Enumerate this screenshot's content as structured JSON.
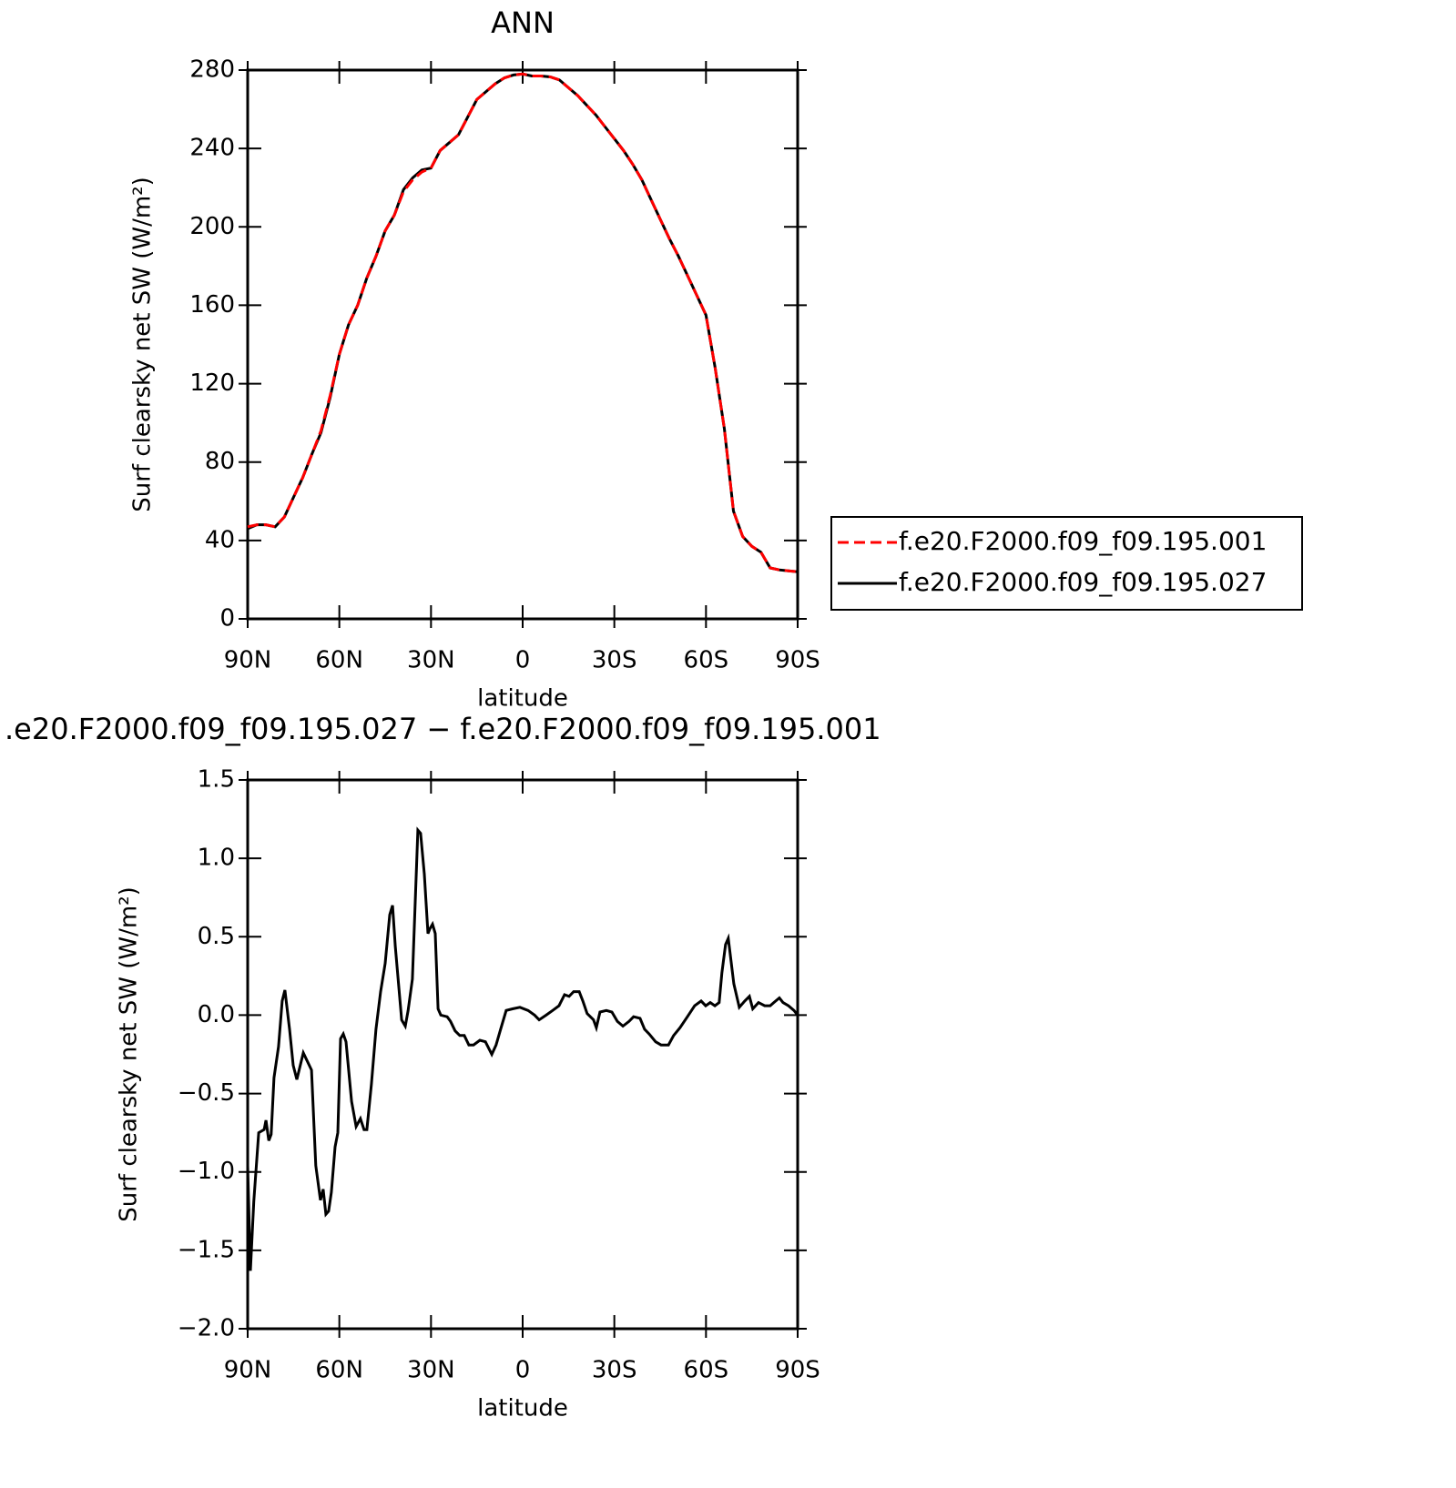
{
  "chart_data": [
    {
      "type": "line",
      "title": "ANN",
      "xlabel": "latitude",
      "ylabel": "Surf clearsky net SW (W/m²)",
      "x": [
        90,
        87,
        84,
        81,
        78,
        75,
        72,
        69,
        66,
        63,
        60,
        57,
        54,
        51,
        48,
        45,
        42,
        39,
        36,
        33,
        30,
        27,
        24,
        21,
        18,
        15,
        12,
        9,
        6,
        3,
        0,
        -3,
        -6,
        -9,
        -12,
        -15,
        -18,
        -21,
        -24,
        -27,
        -30,
        -33,
        -36,
        -39,
        -42,
        -45,
        -48,
        -51,
        -54,
        -57,
        -60,
        -63,
        -66,
        -69,
        -72,
        -75,
        -78,
        -81,
        -84,
        -87,
        -90
      ],
      "series": [
        {
          "name": "f.e20.F2000.f09_f09.195.001",
          "color": "#ff0000",
          "dash": true,
          "values": [
            47,
            48,
            48,
            47,
            52,
            62,
            72,
            84,
            96,
            114,
            135,
            150,
            160,
            174,
            185,
            198,
            206,
            218,
            224,
            228,
            230,
            239,
            243,
            247,
            256,
            265,
            269,
            273,
            276,
            277.5,
            278,
            277,
            277,
            276.5,
            275,
            271,
            267,
            262,
            257,
            251,
            245,
            239,
            232,
            224,
            214,
            204,
            194,
            185,
            175,
            165,
            155,
            128,
            97,
            55,
            42,
            37,
            34,
            26,
            25,
            24.5,
            24
          ]
        },
        {
          "name": "f.e20.F2000.f09_f09.195.027",
          "color": "#000000",
          "dash": false,
          "values": [
            46,
            48,
            48,
            47,
            52,
            62,
            72,
            84,
            95,
            113,
            135,
            150,
            160,
            174,
            185,
            198,
            206,
            219,
            225,
            229,
            230,
            239,
            243,
            247,
            256,
            265,
            269,
            273,
            276,
            277.5,
            278,
            277,
            277,
            276.5,
            275,
            271,
            267,
            262,
            257,
            251,
            245,
            239,
            232,
            224,
            214,
            204,
            194,
            185,
            175,
            165,
            155,
            128,
            97,
            55,
            42,
            37,
            34,
            26,
            25,
            24.5,
            24
          ]
        }
      ],
      "xlim": [
        90,
        -90
      ],
      "xticks": [
        {
          "value": 90,
          "label": "90N"
        },
        {
          "value": 60,
          "label": "60N"
        },
        {
          "value": 30,
          "label": "30N"
        },
        0,
        {
          "value": -30,
          "label": "30S"
        },
        {
          "value": -60,
          "label": "60S"
        },
        {
          "value": -90,
          "label": "90S"
        }
      ],
      "ylim": [
        0,
        280
      ],
      "yticks": [
        0,
        40,
        80,
        120,
        160,
        200,
        240,
        280
      ],
      "legend": "right"
    },
    {
      "type": "line",
      "title": ".e20.F2000.f09_f09.195.027 − f.e20.F2000.f09_f09.195.001",
      "xlabel": "latitude",
      "ylabel": "Surf clearsky net SW (W/m²)",
      "color": "#000000",
      "x": [
        90,
        89.1,
        88,
        86.4,
        84.6,
        84,
        83.1,
        82.3,
        81.4,
        79.9,
        78.7,
        77.8,
        76.3,
        75.1,
        73.9,
        71.8,
        69.1,
        67.7,
        66.2,
        65.3,
        64.4,
        63.5,
        62.6,
        61.4,
        60.5,
        59.6,
        58.7,
        57.8,
        56,
        54.5,
        53.1,
        51.9,
        51,
        49.5,
        48,
        46.5,
        45,
        43.5,
        42.6,
        41.7,
        39.6,
        38.4,
        37.5,
        36.1,
        34.3,
        33.4,
        32.2,
        31,
        30.4,
        29.5,
        28.6,
        27.7,
        26.8,
        24.7,
        23.6,
        22.1,
        20.6,
        19.1,
        17.6,
        16.1,
        14,
        12.2,
        10.1,
        8.7,
        7.2,
        5.4,
        3.3,
        0.9,
        -1.8,
        -3.9,
        -5.4,
        -7.7,
        -9.8,
        -11.9,
        -13.7,
        -15.2,
        -16.7,
        -18.5,
        -19.7,
        -21.1,
        -23.2,
        -24.1,
        -25.3,
        -27.4,
        -29.2,
        -31,
        -32.8,
        -34.8,
        -36.3,
        -38.4,
        -39.9,
        -41.4,
        -43.5,
        -45.3,
        -47.7,
        -49.4,
        -51.5,
        -53.9,
        -56.3,
        -58.4,
        -59.9,
        -61.4,
        -62.9,
        -64.3,
        -65.2,
        -66.4,
        -67.3,
        -69.1,
        -70.9,
        -72.7,
        -74.2,
        -75.3,
        -77.2,
        -79.2,
        -81,
        -82.2,
        -84,
        -85.2,
        -87,
        -88.8,
        -90
      ],
      "values": [
        -0.96,
        -1.63,
        -1.19,
        -0.75,
        -0.73,
        -0.67,
        -0.8,
        -0.76,
        -0.4,
        -0.2,
        0.09,
        0.16,
        -0.09,
        -0.32,
        -0.41,
        -0.24,
        -0.35,
        -0.96,
        -1.18,
        -1.11,
        -1.27,
        -1.25,
        -1.13,
        -0.84,
        -0.75,
        -0.15,
        -0.12,
        -0.17,
        -0.55,
        -0.71,
        -0.66,
        -0.73,
        -0.73,
        -0.44,
        -0.09,
        0.15,
        0.33,
        0.64,
        0.7,
        0.44,
        -0.03,
        -0.07,
        0.03,
        0.23,
        1.18,
        1.16,
        0.9,
        0.52,
        0.55,
        0.58,
        0.52,
        0.04,
        0,
        -0.01,
        -0.04,
        -0.1,
        -0.13,
        -0.13,
        -0.19,
        -0.19,
        -0.16,
        -0.17,
        -0.25,
        -0.19,
        -0.09,
        0.03,
        0.04,
        0.05,
        0.03,
        0,
        -0.03,
        0,
        0.03,
        0.06,
        0.13,
        0.12,
        0.15,
        0.15,
        0.09,
        0.01,
        -0.03,
        -0.08,
        0.02,
        0.03,
        0.02,
        -0.04,
        -0.07,
        -0.04,
        -0.01,
        -0.02,
        -0.09,
        -0.12,
        -0.17,
        -0.19,
        -0.19,
        -0.13,
        -0.08,
        -0.01,
        0.06,
        0.09,
        0.06,
        0.08,
        0.06,
        0.08,
        0.27,
        0.45,
        0.49,
        0.2,
        0.05,
        0.09,
        0.12,
        0.04,
        0.08,
        0.06,
        0.06,
        0.08,
        0.11,
        0.08,
        0.06,
        0.03,
        0
      ],
      "xlim": [
        90,
        -90
      ],
      "xticks": [
        {
          "value": 90,
          "label": "90N"
        },
        {
          "value": 60,
          "label": "60N"
        },
        {
          "value": 30,
          "label": "30N"
        },
        0,
        {
          "value": -30,
          "label": "30S"
        },
        {
          "value": -60,
          "label": "60S"
        },
        {
          "value": -90,
          "label": "90S"
        }
      ],
      "ylim": [
        -2,
        1.5
      ],
      "yticks": [
        1.5,
        {
          "value": 1,
          "label": "1.0"
        },
        {
          "value": 0.5,
          "label": "0.5"
        },
        {
          "value": 0,
          "label": "0.0"
        },
        {
          "value": -0.5,
          "label": "−0.5"
        },
        {
          "value": -1,
          "label": "−1.0"
        },
        {
          "value": -1.5,
          "label": "−1.5"
        },
        {
          "value": -2,
          "label": "−2.0"
        }
      ]
    }
  ]
}
